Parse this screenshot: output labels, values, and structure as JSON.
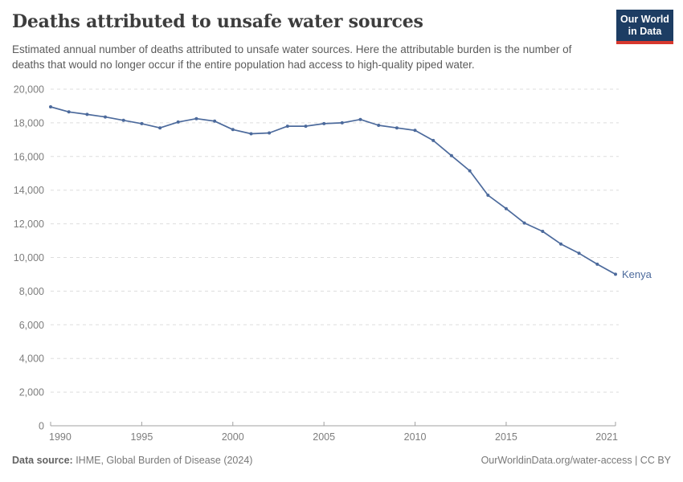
{
  "header": {
    "title": "Deaths attributed to unsafe water sources",
    "subtitle": "Estimated annual number of deaths attributed to unsafe water sources. Here the attributable burden is the number of deaths that would no longer occur if the entire population had access to high-quality piped water."
  },
  "logo": {
    "line1": "Our World",
    "line2": "in Data",
    "bg_color": "#1d3d63",
    "stripe_color": "#d7382e"
  },
  "chart_data": {
    "type": "line",
    "title": "Deaths attributed to unsafe water sources",
    "xlabel": "",
    "ylabel": "",
    "x": [
      1990,
      1991,
      1992,
      1993,
      1994,
      1995,
      1996,
      1997,
      1998,
      1999,
      2000,
      2001,
      2002,
      2003,
      2004,
      2005,
      2006,
      2007,
      2008,
      2009,
      2010,
      2011,
      2012,
      2013,
      2014,
      2015,
      2016,
      2017,
      2018,
      2019,
      2020,
      2021
    ],
    "series": [
      {
        "name": "Kenya",
        "color": "#4C6A9C",
        "values": [
          18950,
          18650,
          18500,
          18350,
          18150,
          17950,
          17700,
          18050,
          18250,
          18100,
          17600,
          17350,
          17400,
          17800,
          17800,
          17950,
          18000,
          18200,
          17850,
          17700,
          17550,
          16950,
          16050,
          15150,
          13700,
          12900,
          12050,
          11550,
          10800,
          10250,
          9600,
          9000
        ]
      }
    ],
    "xticks": [
      1990,
      1995,
      2000,
      2005,
      2010,
      2015,
      2021
    ],
    "yticks": [
      0,
      2000,
      4000,
      6000,
      8000,
      10000,
      12000,
      14000,
      16000,
      18000,
      20000
    ],
    "xlim": [
      1990,
      2021
    ],
    "ylim": [
      0,
      20000
    ],
    "grid": "horizontal-dashed",
    "legend_position": "end-of-line-label",
    "colors": {
      "gridline": "#dddddd",
      "axis": "#a1a1a1",
      "tick_label": "#7d7d7d"
    }
  },
  "footer": {
    "source_label": "Data source:",
    "source_text": " IHME, Global Burden of Disease (2024)",
    "right_text": "OurWorldinData.org/water-access | CC BY"
  }
}
